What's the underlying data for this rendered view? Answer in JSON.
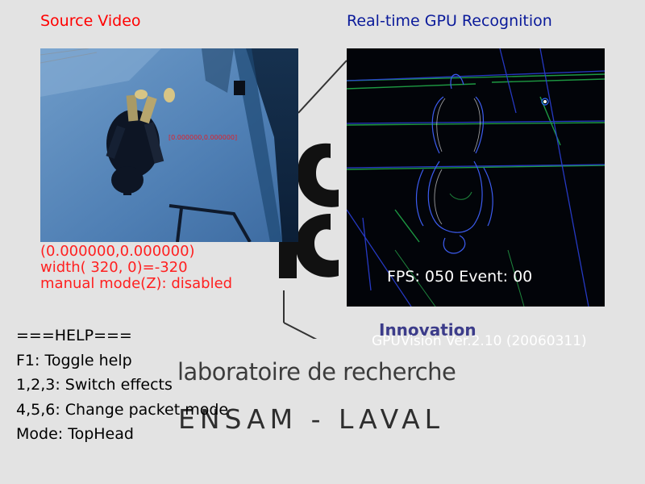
{
  "titles": {
    "source": "Source Video",
    "gpu": "Real-time GPU Recognition"
  },
  "source_overlay": {
    "coords": "[0.000000,0.000000]"
  },
  "gpu_overlay": {
    "fps": "FPS: 050 Event: 00"
  },
  "status": {
    "position": "(0.000000,0.000000)",
    "width": "width( 320,   0)=-320",
    "mode": "manual mode(Z): disabled"
  },
  "version": "GPUVision Ver.2.10 (20060311)",
  "help": {
    "header": "===HELP===",
    "lines": [
      "F1: Toggle help",
      "1,2,3: Switch effects",
      "4,5,6: Change packet mode",
      "Mode: TopHead"
    ]
  },
  "watermark": {
    "innovation": "Innovation",
    "lab": "laboratoire de recherche",
    "school": "ENSAM - LAVAL"
  },
  "colors": {
    "source_title": "#ff0000",
    "gpu_title": "#0a1a9a",
    "status_text": "#ff2020",
    "background": "#e3e3e3"
  }
}
